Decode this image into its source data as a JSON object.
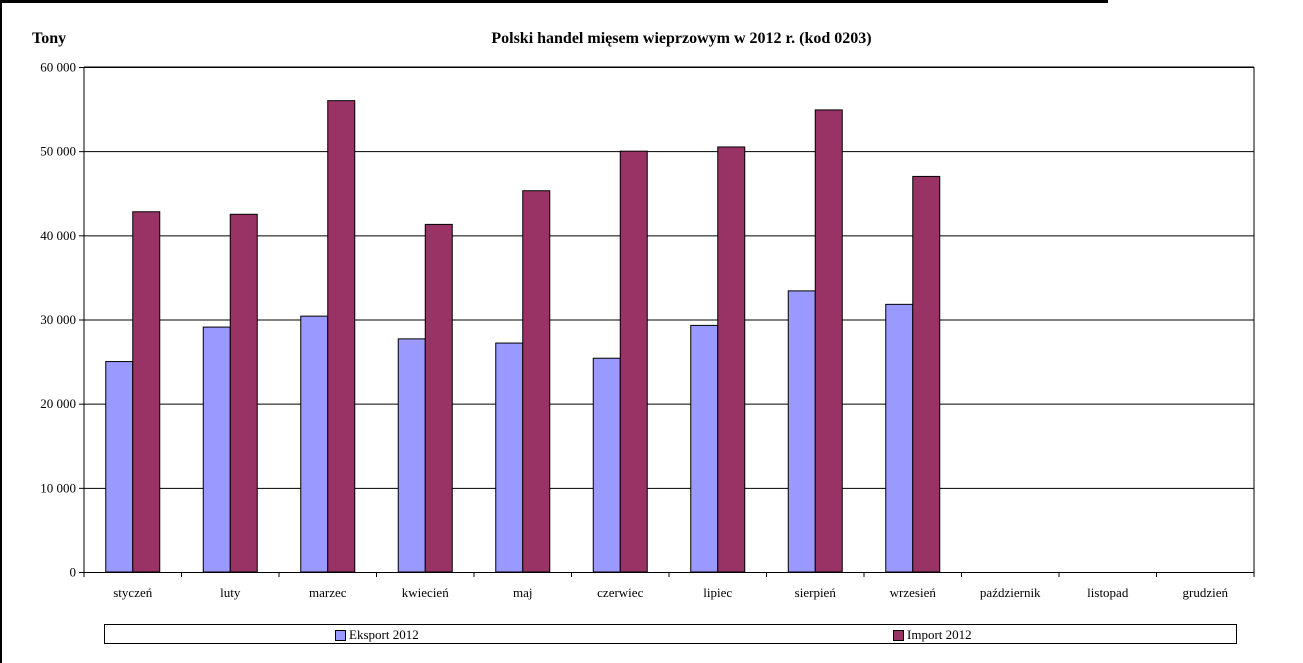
{
  "colors": {
    "export": "#9999ff",
    "import": "#993366",
    "grid": "#000000"
  },
  "chart_data": {
    "type": "bar",
    "title": "Polski handel mięsem wieprzowym w 2012 r. (kod 0203)",
    "ylabel": "Tony",
    "xlabel": "",
    "ylim": [
      0,
      60000
    ],
    "yticks": [
      0,
      10000,
      20000,
      30000,
      40000,
      50000,
      60000
    ],
    "ytick_labels": [
      "0",
      "10 000",
      "20 000",
      "30 000",
      "40 000",
      "50 000",
      "60 000"
    ],
    "grid": true,
    "legend_position": "bottom",
    "categories": [
      "styczeń",
      "luty",
      "marzec",
      "kwiecień",
      "maj",
      "czerwiec",
      "lipiec",
      "sierpień",
      "wrzesień",
      "październik",
      "listopad",
      "grudzień"
    ],
    "series": [
      {
        "name": "Eksport 2012",
        "values": [
          25000,
          29100,
          30400,
          27700,
          27200,
          25400,
          29300,
          33400,
          31800,
          null,
          null,
          null
        ]
      },
      {
        "name": "Import 2012",
        "values": [
          42800,
          42500,
          56000,
          41300,
          45300,
          50000,
          50500,
          54900,
          47000,
          null,
          null,
          null
        ]
      }
    ]
  }
}
